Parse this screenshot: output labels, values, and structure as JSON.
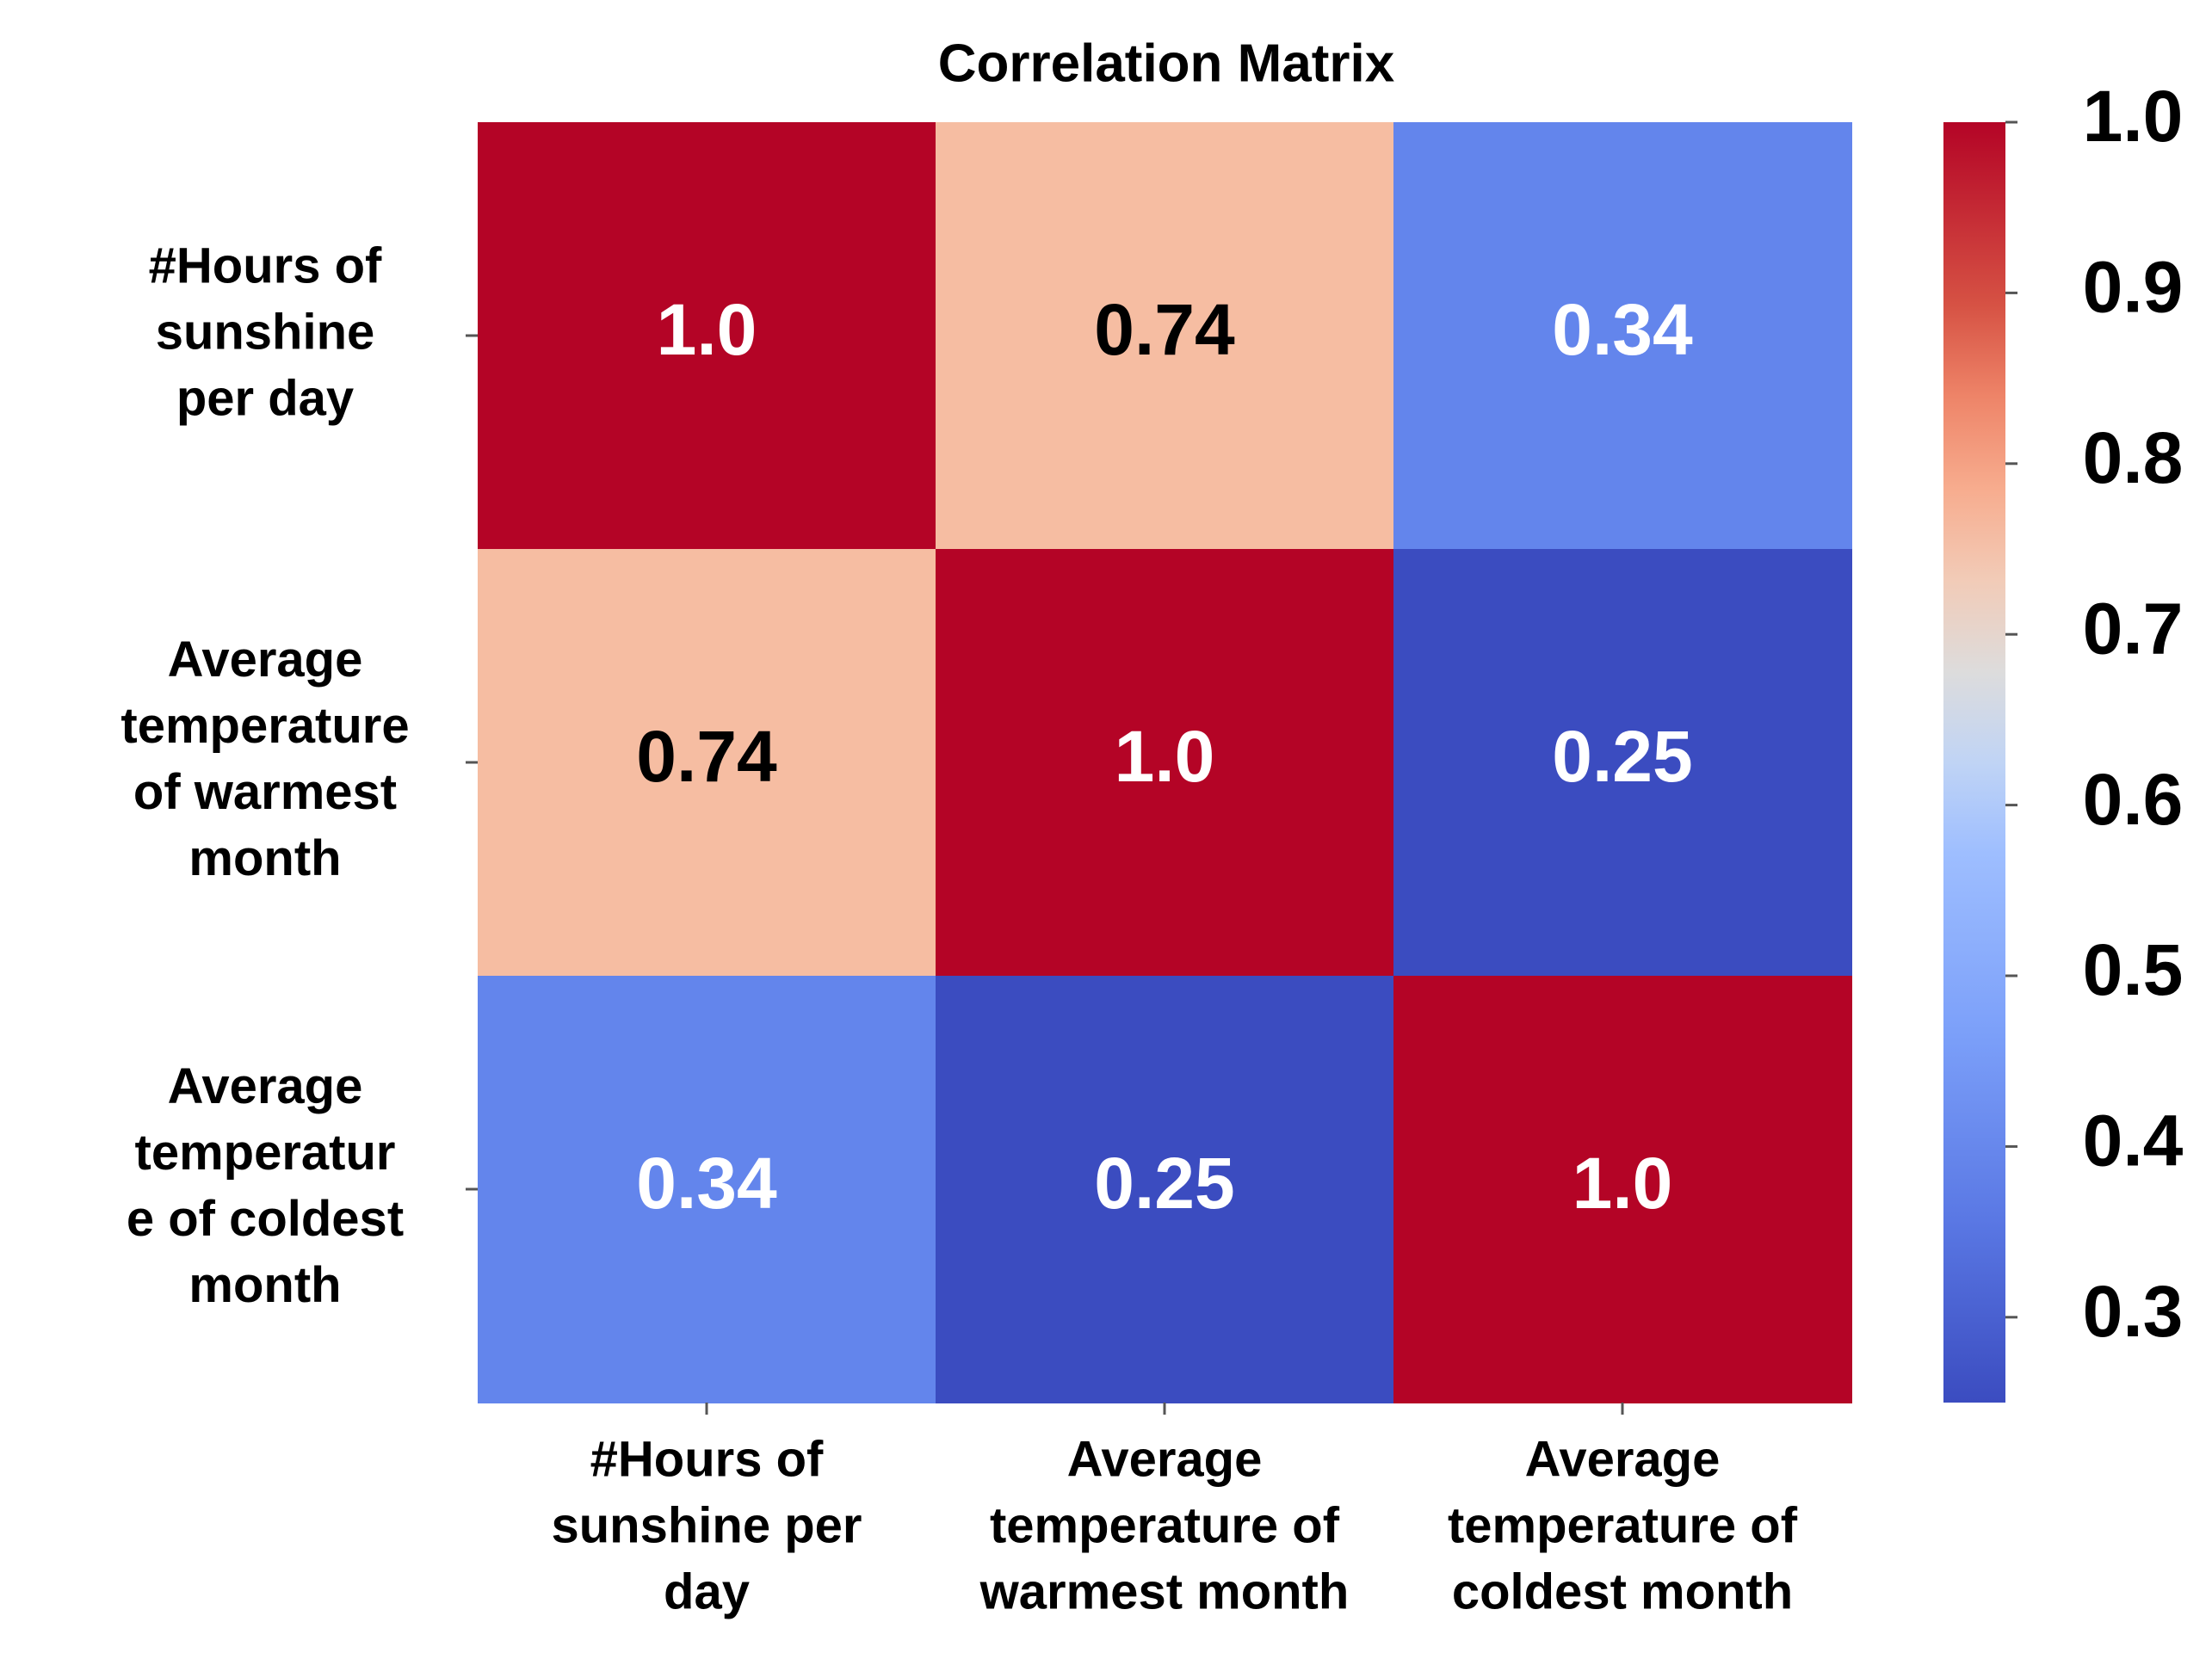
{
  "chart_data": {
    "type": "heatmap",
    "title": "Correlation Matrix",
    "row_labels": [
      [
        "#Hours of",
        "sunshine",
        "per day"
      ],
      [
        "Average",
        "temperature",
        "of warmest",
        "month"
      ],
      [
        "Average",
        "temperatur",
        "e of coldest",
        "month"
      ]
    ],
    "col_labels": [
      [
        "#Hours of",
        "sunshine per",
        "day"
      ],
      [
        "Average",
        "temperature of",
        "warmest month"
      ],
      [
        "Average",
        "temperature of",
        "coldest month"
      ]
    ],
    "values": [
      [
        1.0,
        0.74,
        0.34
      ],
      [
        0.74,
        1.0,
        0.25
      ],
      [
        0.34,
        0.25,
        1.0
      ]
    ],
    "cell_labels": [
      [
        "1.0",
        "0.74",
        "0.34"
      ],
      [
        "0.74",
        "1.0",
        "0.25"
      ],
      [
        "0.34",
        "0.25",
        "1.0"
      ]
    ],
    "colorbar": {
      "colormap": "coolwarm",
      "range": [
        0.25,
        1.0
      ],
      "ticks": [
        1.0,
        0.9,
        0.8,
        0.7,
        0.6,
        0.5,
        0.4,
        0.3
      ],
      "tick_labels": [
        "1.0",
        "0.9",
        "0.8",
        "0.7",
        "0.6",
        "0.5",
        "0.4",
        "0.3"
      ]
    },
    "colors": {
      "high": "#b40426",
      "mid_high": "#f7b89c",
      "mid": "#dddcdc",
      "mid_low": "#6788ee",
      "low": "#3b4cc0"
    }
  }
}
